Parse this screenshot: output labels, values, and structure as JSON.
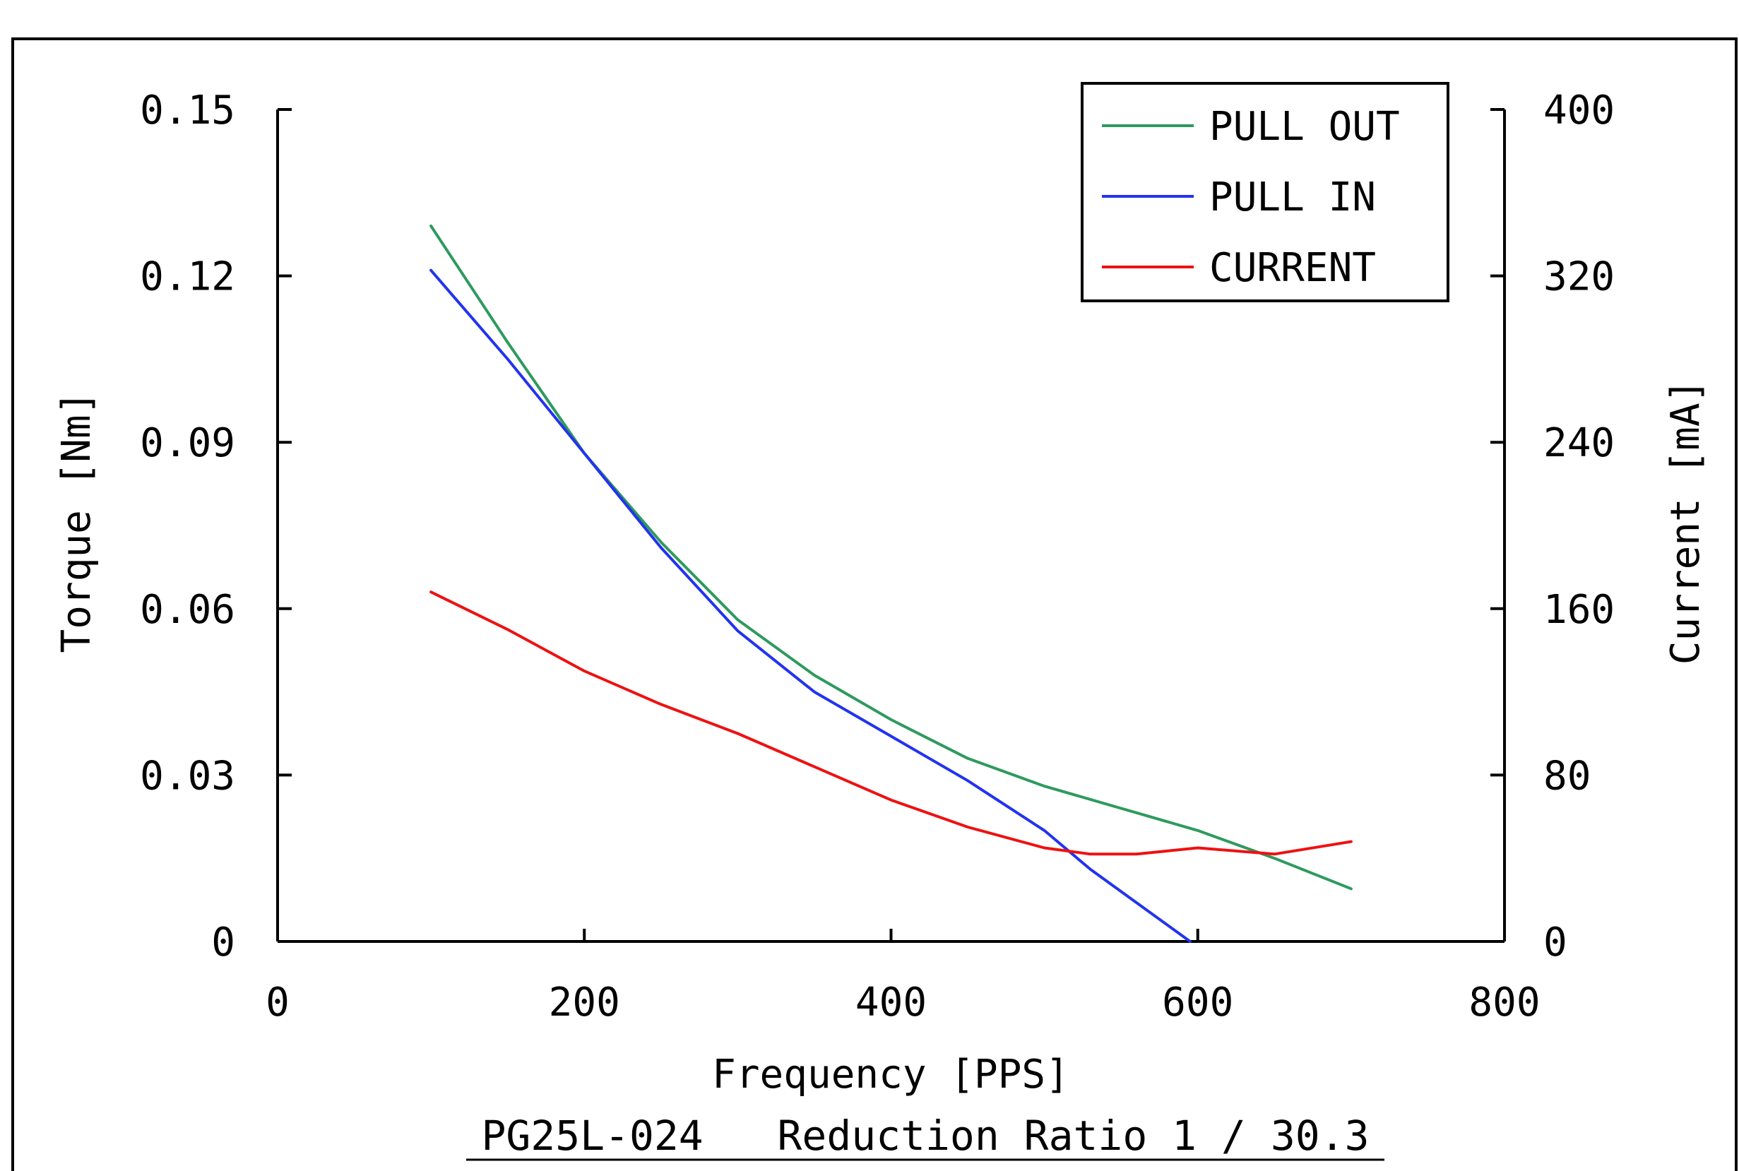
{
  "chart_data": {
    "type": "line",
    "xlabel": "Frequency [PPS]",
    "ylabel": "Torque [Nm]",
    "y2label": "Current [mA]",
    "subtitle": "PG25L-024   Reduction Ratio 1 / 30.3",
    "xlim": [
      0,
      800
    ],
    "ylim": [
      0,
      0.15
    ],
    "y2lim": [
      0,
      400
    ],
    "xticks": [
      "0",
      "200",
      "400",
      "600",
      "800"
    ],
    "yticks": [
      "0",
      "0.03",
      "0.06",
      "0.09",
      "0.12",
      "0.15"
    ],
    "y2ticks": [
      "0",
      "80",
      "160",
      "240",
      "320",
      "400"
    ],
    "grid": false,
    "legend_position": "top-right",
    "series": [
      {
        "name": "PULL OUT",
        "axis": "left",
        "color": "#2e9a5e",
        "x": [
          100,
          150,
          200,
          250,
          300,
          350,
          400,
          450,
          500,
          550,
          600,
          650,
          700
        ],
        "y": [
          0.129,
          0.108,
          0.088,
          0.072,
          0.058,
          0.048,
          0.04,
          0.033,
          0.028,
          0.024,
          0.02,
          0.015,
          0.0095
        ]
      },
      {
        "name": "PULL IN",
        "axis": "left",
        "color": "#2233ee",
        "x": [
          100,
          150,
          200,
          250,
          300,
          350,
          400,
          450,
          500,
          530,
          560,
          595
        ],
        "y": [
          0.121,
          0.105,
          0.088,
          0.071,
          0.056,
          0.045,
          0.037,
          0.029,
          0.02,
          0.013,
          0.007,
          0.0
        ]
      },
      {
        "name": "CURRENT",
        "axis": "right",
        "color": "#ee1111",
        "x": [
          100,
          150,
          200,
          250,
          300,
          350,
          400,
          450,
          500,
          530,
          560,
          600,
          650,
          700
        ],
        "y": [
          168,
          150,
          130,
          114,
          100,
          84,
          68,
          55,
          45,
          42,
          42,
          45,
          42,
          48
        ]
      }
    ]
  }
}
